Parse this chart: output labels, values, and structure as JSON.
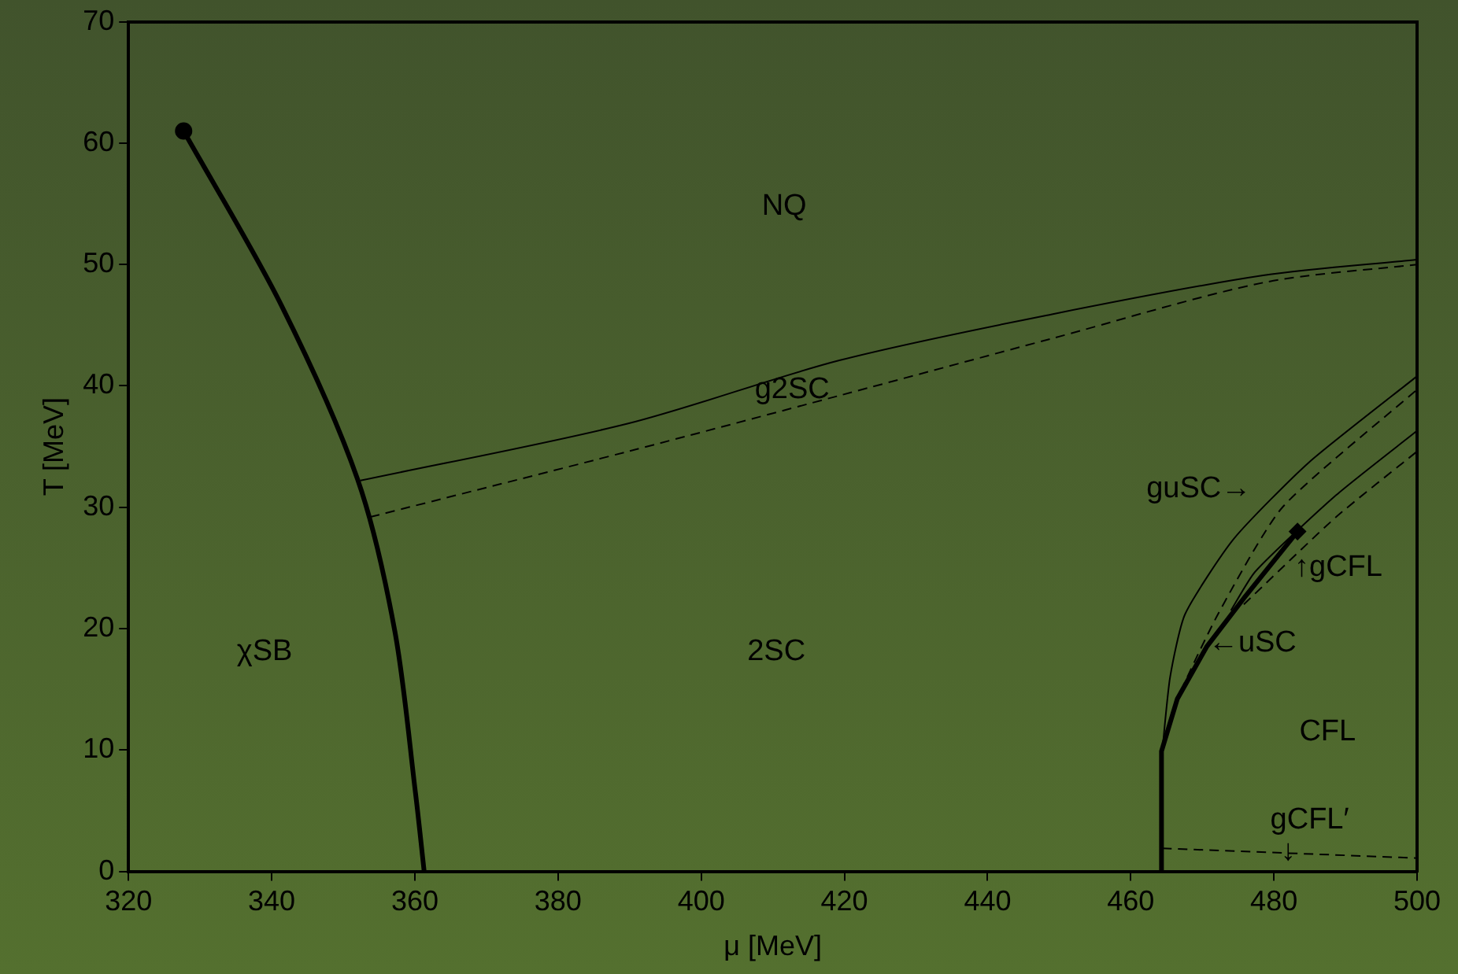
{
  "chart_data": {
    "type": "line",
    "xlabel": "μ [MeV]",
    "ylabel": "T [MeV]",
    "xlim": [
      320,
      500
    ],
    "xticks": [
      320,
      340,
      360,
      380,
      400,
      420,
      440,
      460,
      480,
      500
    ],
    "ylim": [
      0,
      70
    ],
    "yticks": [
      0,
      10,
      20,
      30,
      40,
      50,
      60,
      70
    ],
    "grid": false,
    "legend": false,
    "series": [
      {
        "color": "#000000",
        "line_style": "solid",
        "x": [
          327.7,
          341.3,
          352.0,
          357.2,
          360.1,
          361.3
        ],
        "values": [
          61.0,
          46.7,
          32.3,
          19.8,
          6.4,
          0
        ]
      },
      {
        "color": "#000000",
        "line_style": "solid",
        "x": [
          352.4,
          389.8,
          419.3,
          449,
          478.5,
          500
        ],
        "values": [
          32.2,
          36.9,
          42.1,
          45.9,
          49.1,
          50.4
        ]
      },
      {
        "color": "#000000",
        "line_style": "dashed",
        "x": [
          353.8,
          389.8,
          419.3,
          449,
          478.5,
          500
        ],
        "values": [
          29.2,
          34.6,
          39.2,
          43.9,
          48.5,
          50.0
        ]
      },
      {
        "color": "#000000",
        "line_style": "solid",
        "x": [
          464.2,
          464.3,
          466.5,
          470.6,
          475.8,
          483.3
        ],
        "values": [
          0,
          9.9,
          14.2,
          18.5,
          22.5,
          28.0
        ]
      },
      {
        "color": "#000000",
        "line_style": "solid",
        "x": [
          464.4,
          465.5,
          467.6,
          474.4,
          484.9,
          500
        ],
        "values": [
          9.9,
          16,
          21.2,
          27.4,
          33.7,
          40.8
        ]
      },
      {
        "color": "#000000",
        "line_style": "dashed",
        "x": [
          464.4,
          466,
          472.2,
          481.2,
          500
        ],
        "values": [
          9.9,
          13.5,
          21.2,
          30.0,
          39.7
        ]
      },
      {
        "color": "#000000",
        "line_style": "solid",
        "x": [
          474,
          477.4,
          488.7,
          500
        ],
        "values": [
          21.5,
          24.7,
          31.0,
          36.3
        ]
      },
      {
        "color": "#000000",
        "line_style": "dashed",
        "x": [
          475.8,
          488.7,
          500
        ],
        "values": [
          22.0,
          29.2,
          34.6
        ]
      },
      {
        "color": "#000000",
        "line_style": "dashed",
        "x": [
          464.4,
          500
        ],
        "values": [
          1.9,
          1.1
        ]
      },
      {
        "type": "scatter",
        "marker": "circle",
        "color": "#000000",
        "x": [
          327.7
        ],
        "values": [
          61.0
        ]
      },
      {
        "type": "scatter",
        "marker": "diamond",
        "color": "#000000",
        "x": [
          483.3
        ],
        "values": [
          28.0
        ]
      }
    ],
    "annotations": [
      "NQ",
      "g2SC",
      "2SC",
      "χSB",
      "guSC→",
      "↑gCFL",
      "←uSC",
      "CFL",
      "gCFL′",
      "↓"
    ]
  }
}
